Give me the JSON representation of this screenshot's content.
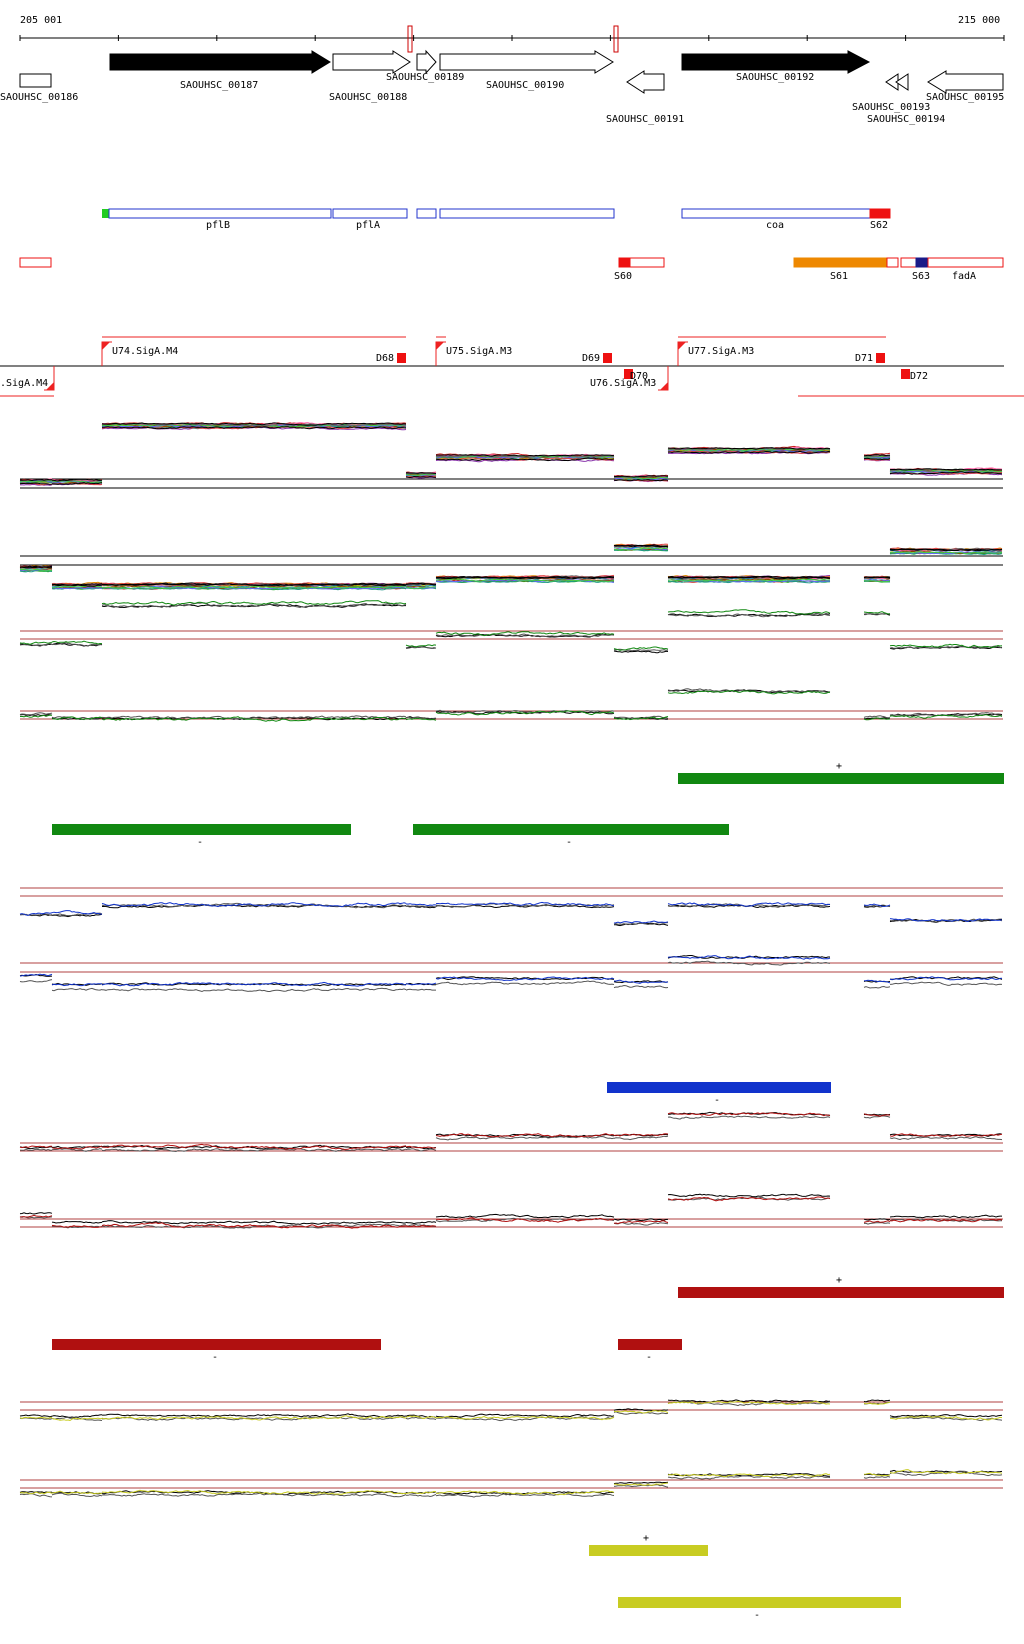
{
  "coords": {
    "start": "205 001",
    "end": "215 000"
  },
  "genes": [
    {
      "id": "SAOUHSC_00186",
      "dir": "+",
      "filled": false
    },
    {
      "id": "SAOUHSC_00187",
      "dir": "+",
      "filled": true
    },
    {
      "id": "SAOUHSC_00188",
      "dir": "+",
      "filled": false
    },
    {
      "id": "SAOUHSC_00189",
      "dir": "+",
      "filled": false
    },
    {
      "id": "SAOUHSC_00190",
      "dir": "+",
      "filled": false
    },
    {
      "id": "SAOUHSC_00191",
      "dir": "-",
      "filled": false
    },
    {
      "id": "SAOUHSC_00192",
      "dir": "+",
      "filled": true
    },
    {
      "id": "SAOUHSC_00193",
      "dir": "-",
      "filled": false
    },
    {
      "id": "SAOUHSC_00194",
      "dir": "-",
      "filled": false
    },
    {
      "id": "SAOUHSC_00195",
      "dir": "-",
      "filled": false
    }
  ],
  "annotations_plus": [
    {
      "label": "pflB"
    },
    {
      "label": "pflA"
    },
    {
      "label": ""
    },
    {
      "label": ""
    },
    {
      "label": "coa"
    },
    {
      "label": "S62"
    }
  ],
  "annotations_minus": [
    {
      "label": ""
    },
    {
      "label": "S60"
    },
    {
      "label": "S61"
    },
    {
      "label": "S63"
    },
    {
      "label": "fadA"
    }
  ],
  "promoters": [
    {
      "label": "U74.SigA.M4"
    },
    {
      "label": "U75.SigA.M3"
    },
    {
      "label": "U77.SigA.M3"
    },
    {
      "label": ".SigA.M4"
    },
    {
      "label": "U76.SigA.M3"
    }
  ],
  "terminators": [
    {
      "label": "D68"
    },
    {
      "label": "D69"
    },
    {
      "label": "D70"
    },
    {
      "label": "D71"
    },
    {
      "label": "D72"
    }
  ],
  "expression_panels": [
    {
      "id": "all",
      "color": "#444444"
    },
    {
      "id": "green",
      "color": "#118811",
      "segments": [
        {
          "strand": "+"
        },
        {
          "strand": "-"
        },
        {
          "strand": "-"
        }
      ]
    },
    {
      "id": "blue",
      "color": "#1133cc",
      "segments": [
        {
          "strand": "-"
        }
      ]
    },
    {
      "id": "red",
      "color": "#b01010",
      "segments": [
        {
          "strand": "+"
        },
        {
          "strand": "-"
        },
        {
          "strand": "-"
        }
      ]
    },
    {
      "id": "yellow",
      "color": "#c8cc22",
      "segments": [
        {
          "strand": "+"
        },
        {
          "strand": "-"
        }
      ]
    }
  ]
}
